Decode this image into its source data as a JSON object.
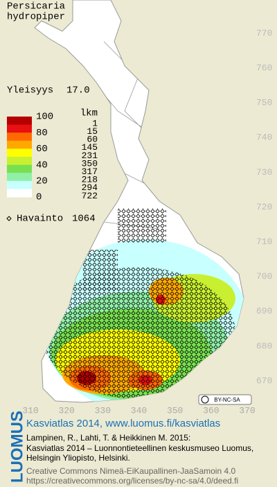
{
  "title": [
    "Persicaria",
    "hydropiper"
  ],
  "frequency": {
    "label": "Yleisyys",
    "value": "17.0"
  },
  "legend": {
    "count_header": "lkm",
    "scale_labels": [
      100,
      80,
      60,
      40,
      20,
      0
    ],
    "classes": [
      {
        "count": 1,
        "color": "#b40000"
      },
      {
        "count": 15,
        "color": "#e81010"
      },
      {
        "count": 60,
        "color": "#ff6a00"
      },
      {
        "count": 145,
        "color": "#ffa800"
      },
      {
        "count": 231,
        "color": "#ffff00"
      },
      {
        "count": 350,
        "color": "#c8f030"
      },
      {
        "count": 317,
        "color": "#78e050"
      },
      {
        "count": 218,
        "color": "#90f0a8"
      },
      {
        "count": 294,
        "color": "#c8ffff"
      },
      {
        "count": 722,
        "color": "#ffffff"
      }
    ]
  },
  "observations": {
    "label": "Havainto",
    "count": 1064
  },
  "grid": {
    "northing": [
      770,
      760,
      750,
      740,
      730,
      720,
      710,
      700,
      690,
      680,
      670
    ],
    "easting": [
      310,
      320,
      330,
      340,
      350,
      360,
      370
    ]
  },
  "license_badge": "BY-NC-SA",
  "footer": {
    "logo": "LUOMUS",
    "headline": "Kasviatlas 2014, www.luomus.fi/kasviatlas",
    "citation": [
      "Lampinen, R., Lahti, T. & Heikkinen M. 2015:",
      "Kasviatlas 2014 – Luonnontieteellinen keskusmuseo Luomus,",
      "Helsingin Yliopisto, Helsinki."
    ],
    "license": [
      "Creative Commons Nimeä-EiKaupallinen-JaaSamoin 4.0",
      "https://creativecommons.org/licenses/by-nc-sa/4.0/deed.fi"
    ]
  }
}
